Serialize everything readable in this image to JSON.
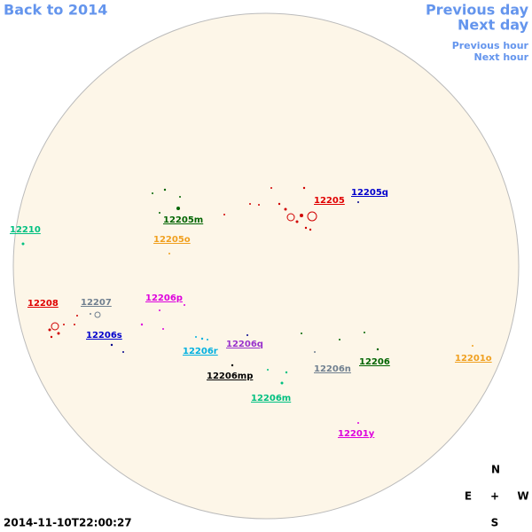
{
  "nav": {
    "back": "Back to 2014",
    "previous_day": "Previous day",
    "next_day": "Next day",
    "previous_hour": "Previous hour",
    "next_hour": "Next hour"
  },
  "regions": [
    {
      "label": "12205"
    },
    {
      "label": "12205q"
    },
    {
      "label": "12210"
    },
    {
      "label": "12205m"
    },
    {
      "label": "12205o"
    },
    {
      "label": "12208"
    },
    {
      "label": "12207"
    },
    {
      "label": "12206p"
    },
    {
      "label": "12206s"
    },
    {
      "label": "12206r"
    },
    {
      "label": "12206q"
    },
    {
      "label": "12206mp"
    },
    {
      "label": "12206n"
    },
    {
      "label": "12206"
    },
    {
      "label": "12201o"
    },
    {
      "label": "12206m"
    },
    {
      "label": "12201y"
    }
  ],
  "compass": {
    "north": "N",
    "east": "E",
    "center": "+",
    "west": "W",
    "south": "S"
  },
  "timestamp": "2014-11-10T22:00:27"
}
